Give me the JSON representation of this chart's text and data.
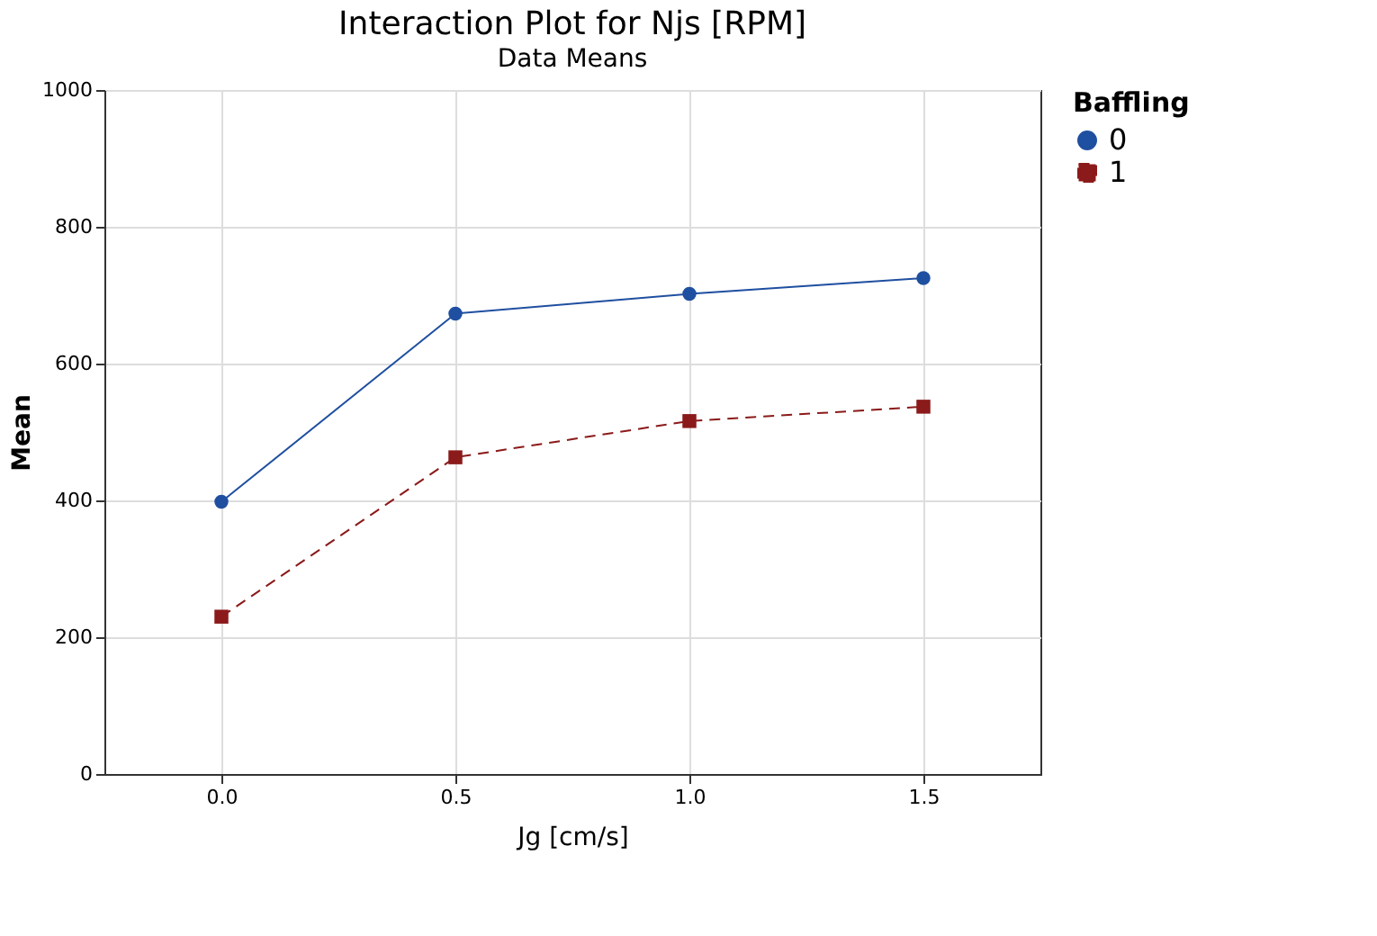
{
  "chart_data": {
    "type": "line",
    "title": "Interaction Plot for Njs [RPM]",
    "subtitle": "Data Means",
    "xlabel": "Jg [cm/s]",
    "ylabel": "Mean",
    "legend_title": "Baffling",
    "x": [
      0.0,
      0.5,
      1.0,
      1.5
    ],
    "series": [
      {
        "name": "0",
        "color": "#1f4fa0",
        "values": [
          398,
          673,
          702,
          725
        ],
        "marker": "circle",
        "line_style": "solid"
      },
      {
        "name": "1",
        "color": "#8b1a1a",
        "values": [
          230,
          463,
          516,
          537
        ],
        "marker": "square",
        "line_style": "dashed"
      }
    ],
    "xlim": [
      -0.25,
      1.75
    ],
    "xticks": [
      {
        "value": 0,
        "label": "0.0"
      },
      {
        "value": 0.5,
        "label": "0.5"
      },
      {
        "value": 1,
        "label": "1.0"
      },
      {
        "value": 1.5,
        "label": "1.5"
      }
    ],
    "ylim": [
      0,
      1000
    ],
    "yticks": [
      0,
      200,
      400,
      600,
      800,
      1000
    ],
    "grid": true,
    "legend": "right"
  }
}
